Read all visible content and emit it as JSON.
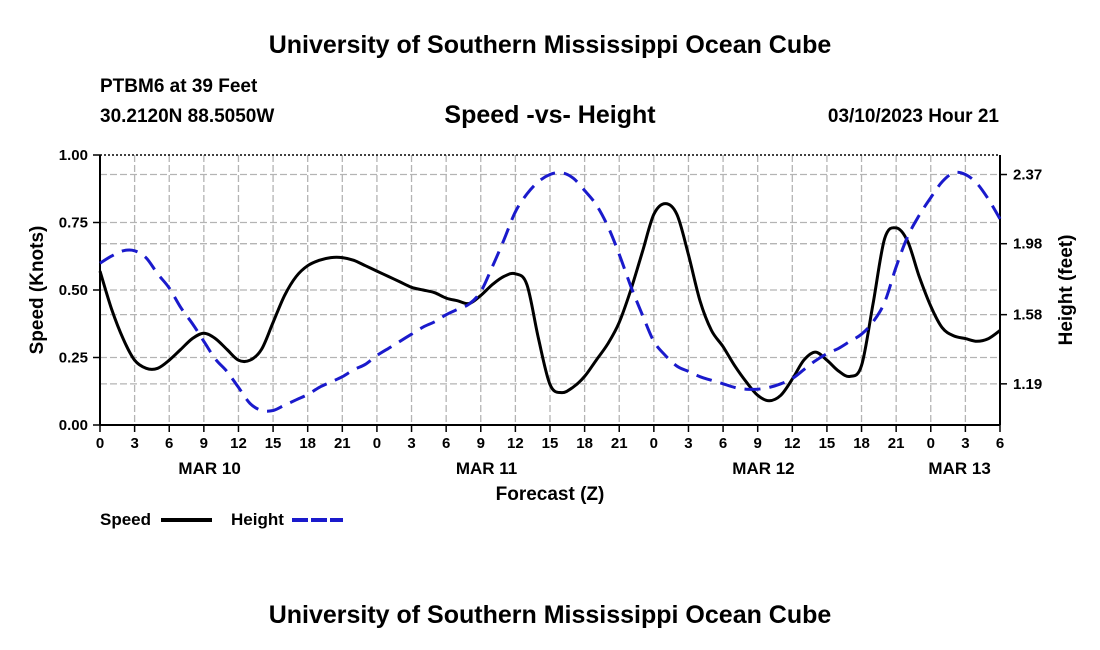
{
  "header": {
    "title": "University of Southern Mississippi Ocean Cube",
    "station": "PTBM6 at 39 Feet",
    "coords": "30.2120N  88.5050W",
    "datetime": "03/10/2023 Hour 21",
    "footer_title": "University of Southern Mississippi Ocean Cube"
  },
  "legend": {
    "speed": "Speed",
    "height": "Height"
  },
  "colors": {
    "speed": "#000000",
    "height": "#1a1acc",
    "grid": "#b4b4b4"
  },
  "chart_data": {
    "type": "line",
    "title": "Speed -vs- Height",
    "xlabel": "Forecast (Z)",
    "ylabel": "Speed (Knots)",
    "y2label": "Height (feet)",
    "x_unit": "hours from MAR 10 00Z",
    "xlim": [
      0,
      78
    ],
    "ylim": [
      0,
      1.0
    ],
    "y2lim": [
      0.958,
      2.48
    ],
    "x_tick_labels": [
      "0",
      "3",
      "6",
      "9",
      "12",
      "15",
      "18",
      "21",
      "0",
      "3",
      "6",
      "9",
      "12",
      "15",
      "18",
      "21",
      "0",
      "3",
      "6",
      "9",
      "12",
      "15",
      "18",
      "21",
      "0",
      "3",
      "6"
    ],
    "y_ticks": [
      0.0,
      0.25,
      0.5,
      0.75,
      1.0
    ],
    "y_tick_labels": [
      "0.00",
      "0.25",
      "0.50",
      "0.75",
      "1.00"
    ],
    "y2_ticks": [
      1.19,
      1.58,
      1.98,
      2.37
    ],
    "y2_tick_labels": [
      "1.19",
      "1.58",
      "1.98",
      "2.37"
    ],
    "date_labels": [
      {
        "label": "MAR 10",
        "hour": 9.5
      },
      {
        "label": "MAR 11",
        "hour": 33.5
      },
      {
        "label": "MAR 12",
        "hour": 57.5
      },
      {
        "label": "MAR 13",
        "hour": 74.5
      }
    ],
    "series": [
      {
        "name": "Speed",
        "axis": "left",
        "x": [
          0,
          1,
          2,
          3,
          4,
          5,
          6,
          7,
          8,
          9,
          10,
          11,
          12,
          13,
          14,
          15,
          16,
          17,
          18,
          19,
          20,
          21,
          22,
          23,
          24,
          25,
          26,
          27,
          28,
          29,
          30,
          31,
          32,
          33,
          34,
          35,
          36,
          37,
          38,
          39,
          40,
          41,
          42,
          43,
          44,
          45,
          46,
          47,
          48,
          49,
          50,
          51,
          52,
          53,
          54,
          55,
          56,
          57,
          58,
          59,
          60,
          61,
          62,
          63,
          64,
          65,
          66,
          67,
          68,
          69,
          70,
          71,
          72,
          73,
          74,
          75,
          76,
          77,
          78
        ],
        "values": [
          0.57,
          0.43,
          0.32,
          0.24,
          0.21,
          0.21,
          0.24,
          0.28,
          0.32,
          0.34,
          0.32,
          0.28,
          0.24,
          0.24,
          0.28,
          0.38,
          0.48,
          0.55,
          0.59,
          0.61,
          0.62,
          0.62,
          0.61,
          0.59,
          0.57,
          0.55,
          0.53,
          0.51,
          0.5,
          0.49,
          0.47,
          0.46,
          0.45,
          0.48,
          0.52,
          0.55,
          0.56,
          0.52,
          0.32,
          0.15,
          0.12,
          0.14,
          0.18,
          0.24,
          0.3,
          0.38,
          0.5,
          0.64,
          0.78,
          0.82,
          0.78,
          0.63,
          0.46,
          0.35,
          0.29,
          0.22,
          0.16,
          0.11,
          0.09,
          0.11,
          0.17,
          0.24,
          0.27,
          0.24,
          0.2,
          0.18,
          0.22,
          0.45,
          0.69,
          0.73,
          0.68,
          0.55,
          0.44,
          0.36,
          0.33,
          0.32,
          0.31,
          0.32,
          0.35
        ]
      },
      {
        "name": "Height",
        "axis": "right",
        "x": [
          0,
          1,
          2,
          3,
          4,
          5,
          6,
          7,
          8,
          9,
          10,
          11,
          12,
          13,
          14,
          15,
          16,
          17,
          18,
          19,
          20,
          21,
          22,
          23,
          24,
          25,
          26,
          27,
          28,
          29,
          30,
          31,
          32,
          33,
          34,
          35,
          36,
          37,
          38,
          39,
          40,
          41,
          42,
          43,
          44,
          45,
          46,
          47,
          48,
          49,
          50,
          51,
          52,
          53,
          54,
          55,
          56,
          57,
          58,
          59,
          60,
          61,
          62,
          63,
          64,
          65,
          66,
          67,
          68,
          69,
          70,
          71,
          72,
          73,
          74,
          75,
          76,
          77,
          78
        ],
        "values": [
          1.87,
          1.91,
          1.94,
          1.94,
          1.9,
          1.81,
          1.73,
          1.62,
          1.53,
          1.43,
          1.33,
          1.26,
          1.17,
          1.08,
          1.04,
          1.04,
          1.07,
          1.1,
          1.13,
          1.17,
          1.2,
          1.23,
          1.27,
          1.3,
          1.35,
          1.39,
          1.43,
          1.47,
          1.51,
          1.54,
          1.58,
          1.61,
          1.64,
          1.71,
          1.85,
          2.0,
          2.16,
          2.26,
          2.33,
          2.37,
          2.38,
          2.35,
          2.28,
          2.2,
          2.08,
          1.92,
          1.74,
          1.58,
          1.43,
          1.35,
          1.29,
          1.26,
          1.23,
          1.21,
          1.19,
          1.17,
          1.16,
          1.16,
          1.17,
          1.19,
          1.22,
          1.27,
          1.32,
          1.36,
          1.39,
          1.43,
          1.47,
          1.54,
          1.65,
          1.85,
          2.02,
          2.14,
          2.24,
          2.33,
          2.38,
          2.37,
          2.32,
          2.23,
          2.12
        ]
      }
    ]
  }
}
